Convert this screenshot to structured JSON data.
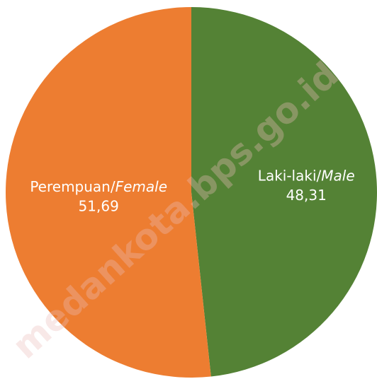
{
  "chart_data": {
    "type": "pie",
    "categories": [
      "Laki-laki/Male",
      "Perempuan/Female"
    ],
    "values": [
      48.31,
      51.69
    ],
    "value_labels": [
      "48,31",
      "51,69"
    ],
    "colors": [
      "#548235",
      "#ed7d31"
    ],
    "watermark": "medankota.bps.go.id"
  }
}
